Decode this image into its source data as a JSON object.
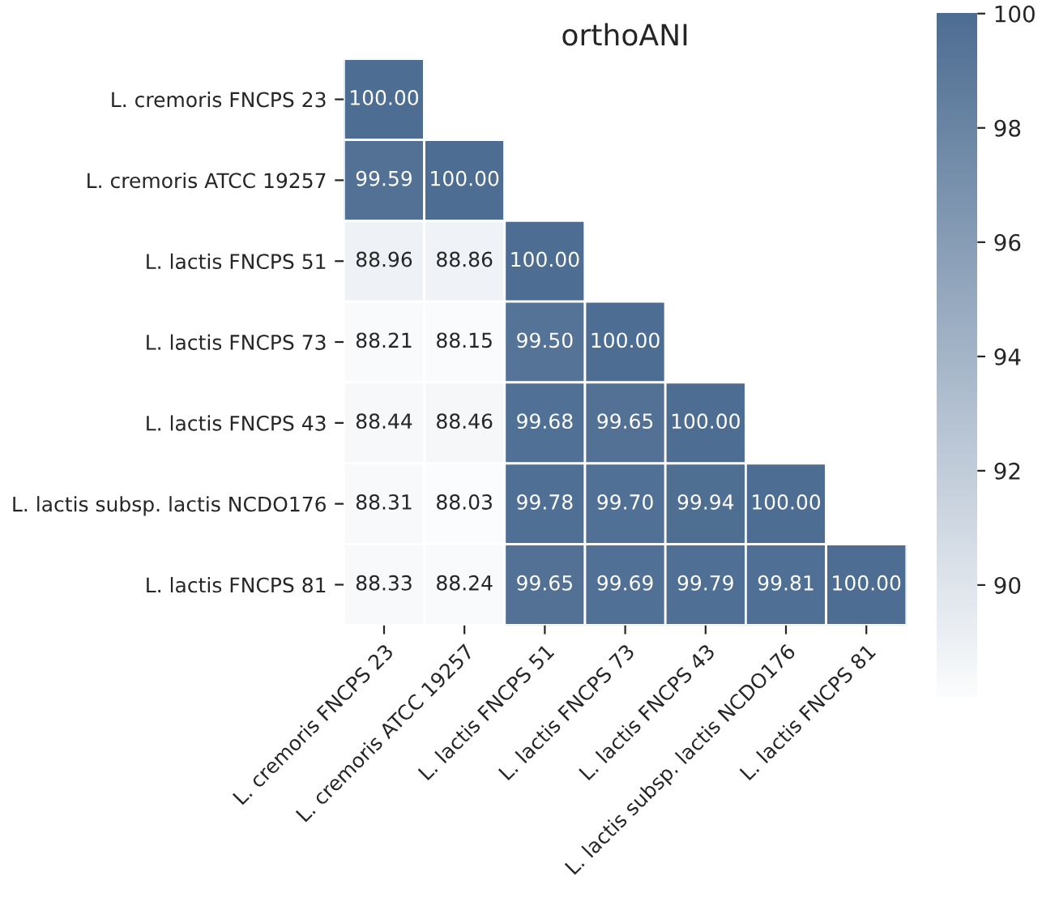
{
  "chart_data": {
    "type": "heatmap",
    "title": "orthoANI",
    "categories": [
      "L. cremoris FNCPS 23",
      "L. cremoris ATCC 19257",
      "L. lactis FNCPS 51",
      "L. lactis FNCPS 73",
      "L. lactis FNCPS 43",
      "L. lactis subsp. lactis NCDO176",
      "L. lactis FNCPS 81"
    ],
    "y_categories": [
      "L. cremoris FNCPS 23",
      "L. cremoris ATCC 19257",
      "L. lactis FNCPS 51",
      "L. lactis FNCPS 73",
      "L. lactis FNCPS 43",
      "L. lactis subsp. lactis NCDO176",
      "L. lactis FNCPS 81"
    ],
    "cells": [
      [
        100.0,
        null,
        null,
        null,
        null,
        null,
        null
      ],
      [
        99.59,
        100.0,
        null,
        null,
        null,
        null,
        null
      ],
      [
        88.96,
        88.86,
        100.0,
        null,
        null,
        null,
        null
      ],
      [
        88.21,
        88.15,
        99.5,
        100.0,
        null,
        null,
        null
      ],
      [
        88.44,
        88.46,
        99.68,
        99.65,
        100.0,
        null,
        null
      ],
      [
        88.31,
        88.03,
        99.78,
        99.7,
        99.94,
        100.0,
        null
      ],
      [
        88.33,
        88.24,
        99.65,
        99.69,
        99.79,
        99.81,
        100.0
      ]
    ],
    "cell_labels": [
      [
        "100.00",
        null,
        null,
        null,
        null,
        null,
        null
      ],
      [
        "99.59",
        "100.00",
        null,
        null,
        null,
        null,
        null
      ],
      [
        "88.96",
        "88.86",
        "100.00",
        null,
        null,
        null,
        null
      ],
      [
        "88.21",
        "88.15",
        "99.50",
        "100.00",
        null,
        null,
        null
      ],
      [
        "88.44",
        "88.46",
        "99.68",
        "99.65",
        "100.00",
        null,
        null
      ],
      [
        "88.31",
        "88.03",
        "99.78",
        "99.70",
        "99.94",
        "100.00",
        null
      ],
      [
        "88.33",
        "88.24",
        "99.65",
        "99.69",
        "99.79",
        "99.81",
        "100.00"
      ]
    ],
    "clim": [
      88.03,
      100
    ],
    "cticks": [
      90,
      92,
      94,
      96,
      98,
      100
    ]
  }
}
